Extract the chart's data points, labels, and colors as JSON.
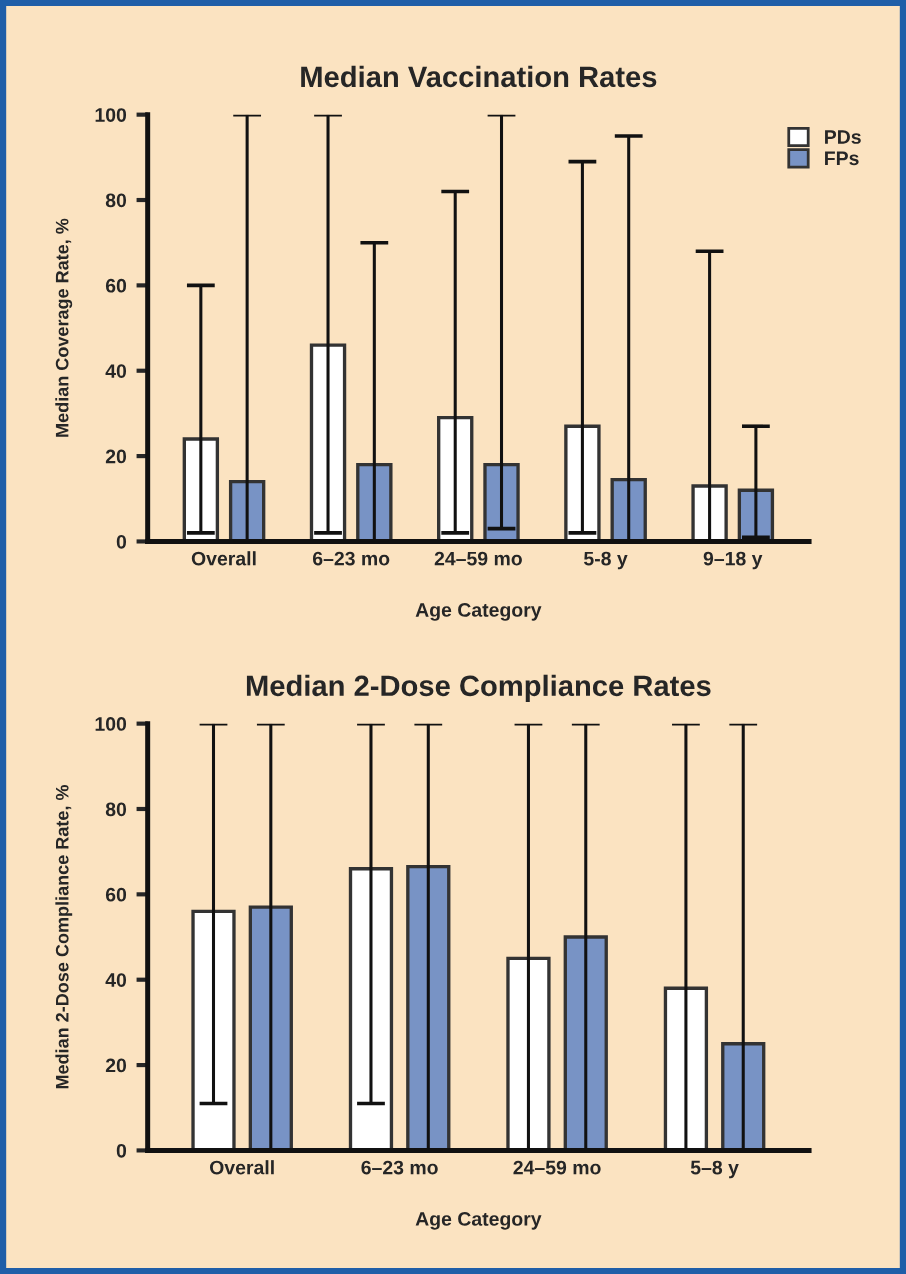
{
  "chart_data": [
    {
      "type": "bar",
      "title": "Median Vaccination Rates",
      "xlabel": "Age Category",
      "ylabel": "Median Coverage Rate, %",
      "categories": [
        "Overall",
        "6–23 mo",
        "24–59 mo",
        "5-8 y",
        "9–18 y"
      ],
      "series": [
        {
          "name": "PDs",
          "color": "#ffffff",
          "values": [
            24,
            46,
            29,
            27,
            13
          ],
          "errors": [
            [
              2,
              60
            ],
            [
              2,
              100
            ],
            [
              2,
              82
            ],
            [
              2,
              89
            ],
            [
              0,
              68
            ]
          ]
        },
        {
          "name": "FPs",
          "color": "#7893c5",
          "values": [
            14,
            18,
            18,
            14.5,
            12
          ],
          "errors": [
            [
              0,
              100
            ],
            [
              0,
              70
            ],
            [
              3,
              100
            ],
            [
              0,
              95
            ],
            [
              1,
              27
            ]
          ]
        }
      ],
      "ylim": [
        0,
        100
      ],
      "yticks": [
        0,
        20,
        40,
        60,
        80,
        100
      ],
      "grid": false,
      "legend": "top right"
    },
    {
      "type": "bar",
      "title": "Median 2-Dose Compliance Rates",
      "xlabel": "Age Category",
      "ylabel": "Median 2-Dose Compliance Rate, %",
      "categories": [
        "Overall",
        "6–23 mo",
        "24–59 mo",
        "5–8 y"
      ],
      "series": [
        {
          "color": "#ffffff",
          "values": [
            56,
            66,
            45,
            38
          ],
          "errors": [
            [
              11,
              100
            ],
            [
              11,
              100
            ],
            [
              0,
              100
            ],
            [
              0,
              100
            ]
          ]
        },
        {
          "color": "#7893c5",
          "values": [
            57,
            66.5,
            50,
            25
          ],
          "errors": [
            [
              0,
              100
            ],
            [
              0,
              100
            ],
            [
              0,
              100
            ],
            [
              0,
              100
            ]
          ]
        }
      ],
      "ylim": [
        0,
        100
      ],
      "yticks": [
        0,
        20,
        40,
        60,
        80,
        100
      ],
      "grid": false,
      "legend": false
    }
  ]
}
